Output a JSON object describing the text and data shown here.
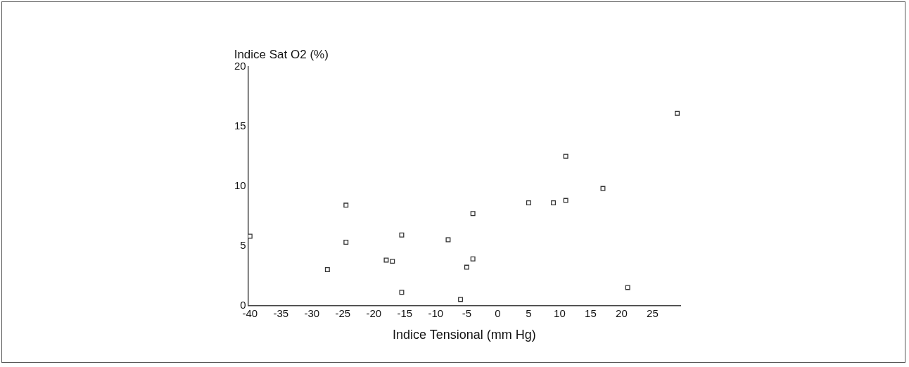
{
  "chart_data": {
    "type": "scatter",
    "xlabel": "Indice Tensional (mm Hg)",
    "ylabel": "Indice Sat O2 (%)",
    "marker": "square",
    "grid": false,
    "legend": false,
    "xlim": [
      -40.3,
      29.5
    ],
    "xticks": [
      -40,
      -35,
      -30,
      -25,
      -20,
      -15,
      -10,
      -5,
      0,
      5,
      10,
      15,
      20,
      25
    ],
    "ylim": [
      0,
      20
    ],
    "yticks": [
      0,
      5,
      10,
      15,
      20
    ],
    "series": [
      {
        "color": "#333333",
        "x": [
          -40,
          -24.5,
          -24.5,
          -27.5,
          -18,
          -17,
          -15.5,
          -15.5,
          -8,
          -6,
          -5,
          -4,
          -4,
          5,
          9,
          11,
          11,
          17,
          21,
          29
        ],
        "values": [
          5.8,
          8.4,
          5.3,
          3,
          3.8,
          3.7,
          5.9,
          1.1,
          5.5,
          0.5,
          3.2,
          3.9,
          7.7,
          8.6,
          8.6,
          8.8,
          12.5,
          9.8,
          1.5,
          16.1
        ]
      }
    ]
  }
}
